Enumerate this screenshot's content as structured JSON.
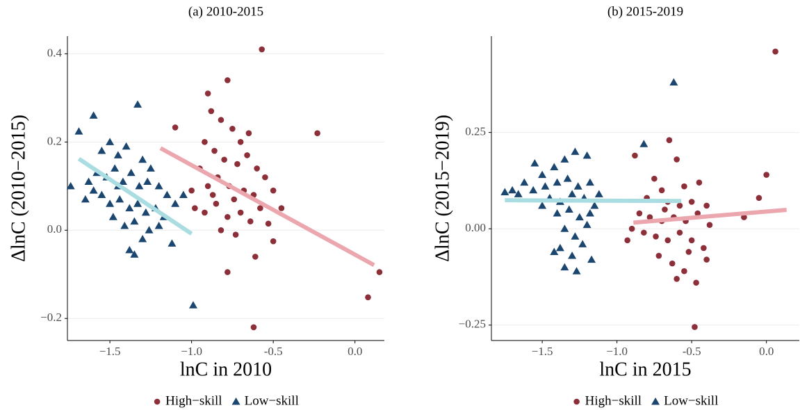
{
  "chart_data": [
    {
      "type": "scatter",
      "title": "(a) 2010-2015",
      "xlabel": "lnC in 2010",
      "ylabel": "ΔlnC (2010−2015)",
      "xlim": [
        -1.76,
        0.18
      ],
      "ylim": [
        -0.25,
        0.44
      ],
      "xticks": [
        {
          "value": -1.5,
          "label": "−1.5"
        },
        {
          "value": -1.0,
          "label": "−1.0"
        },
        -0.5,
        {
          "value": 0,
          "label": "0.0"
        }
      ],
      "yticks": [
        {
          "value": -0.2,
          "label": "−0.2"
        },
        {
          "value": 0,
          "label": "0.0"
        },
        0.2,
        0.4
      ],
      "grid": true,
      "legend": "bottom",
      "series": [
        {
          "name": "High−skill",
          "color": "#8c2f39",
          "marker": "circle",
          "x": [
            -0.57,
            -0.78,
            -0.9,
            -0.23,
            0.15,
            0.08,
            -0.62,
            -0.78,
            -0.5,
            -1.1,
            -0.88,
            -0.82,
            -0.75,
            -0.7,
            -0.65,
            -0.92,
            -0.86,
            -0.8,
            -0.72,
            -0.6,
            -0.55,
            -0.95,
            -0.9,
            -0.84,
            -0.77,
            -0.68,
            -0.62,
            -0.5,
            -0.45,
            -0.98,
            -0.92,
            -0.85,
            -0.78,
            -0.7,
            -0.64,
            -0.58,
            -0.82,
            -0.73,
            -0.61,
            -0.87,
            -0.66,
            -0.74,
            -0.53,
            -1.0
          ],
          "values": [
            0.41,
            0.34,
            0.31,
            0.22,
            -0.095,
            -0.152,
            -0.22,
            -0.095,
            -0.025,
            0.233,
            0.27,
            0.25,
            0.23,
            0.2,
            0.22,
            0.2,
            0.18,
            0.16,
            0.15,
            0.14,
            0.12,
            0.14,
            0.1,
            0.12,
            0.1,
            0.09,
            0.08,
            0.09,
            0.05,
            0.05,
            0.04,
            0.06,
            0.03,
            0.04,
            0.02,
            0.05,
            0.0,
            -0.01,
            -0.06,
            0.08,
            0.17,
            0.07,
            0.015,
            0.09
          ]
        },
        {
          "name": "Low−skill",
          "color": "#1b4670",
          "marker": "triangle",
          "x": [
            -1.69,
            -1.65,
            -1.6,
            -1.33,
            -0.99,
            -1.35,
            -1.38,
            -1.55,
            -1.5,
            -1.45,
            -1.4,
            -1.3,
            -1.25,
            -1.58,
            -1.52,
            -1.47,
            -1.42,
            -1.37,
            -1.32,
            -1.27,
            -1.2,
            -1.15,
            -1.6,
            -1.55,
            -1.5,
            -1.44,
            -1.38,
            -1.33,
            -1.28,
            -1.22,
            -1.17,
            -1.1,
            -1.05,
            -1.48,
            -1.41,
            -1.35,
            -1.26,
            -1.2,
            -1.3,
            -1.63,
            -1.74,
            -1.12,
            -1.45
          ],
          "values": [
            0.224,
            0.07,
            0.26,
            0.285,
            -0.17,
            -0.055,
            -0.045,
            0.18,
            0.2,
            0.17,
            0.19,
            0.16,
            0.14,
            0.13,
            0.12,
            0.14,
            0.11,
            0.13,
            0.1,
            0.11,
            0.1,
            0.08,
            0.09,
            0.08,
            0.06,
            0.07,
            0.05,
            0.06,
            0.04,
            0.05,
            0.03,
            0.06,
            0.08,
            0.03,
            0.01,
            0.02,
            0.0,
            0.01,
            -0.02,
            0.11,
            0.1,
            -0.03,
            0.1
          ]
        }
      ],
      "fits": [
        {
          "color": "#a9dde2",
          "x": [
            -1.69,
            -1.0
          ],
          "values": [
            0.162,
            -0.008
          ]
        },
        {
          "color": "#eba6ae",
          "x": [
            -1.19,
            0.117
          ],
          "values": [
            0.186,
            -0.079
          ]
        }
      ]
    },
    {
      "type": "scatter",
      "title": "(b) 2015-2019",
      "xlabel": "lnC in 2015",
      "ylabel": "ΔlnC (2015−2019)",
      "xlim": [
        -1.84,
        0.22
      ],
      "ylim": [
        -0.29,
        0.5
      ],
      "xticks": [
        {
          "value": -1.5,
          "label": "−1.5"
        },
        {
          "value": -1.0,
          "label": "−1.0"
        },
        -0.5,
        {
          "value": 0,
          "label": "0.0"
        }
      ],
      "yticks": [
        {
          "value": -0.25,
          "label": "−0.25"
        },
        {
          "value": 0,
          "label": "0.00"
        },
        0.25
      ],
      "grid": true,
      "legend": "bottom",
      "series": [
        {
          "name": "High−skill",
          "color": "#8c2f39",
          "marker": "circle",
          "x": [
            0.06,
            0.0,
            -0.05,
            -0.15,
            -0.48,
            -0.65,
            -0.88,
            -0.6,
            -0.75,
            -0.7,
            -0.55,
            -0.45,
            -0.8,
            -0.66,
            -0.58,
            -0.5,
            -0.4,
            -0.85,
            -0.78,
            -0.7,
            -0.62,
            -0.54,
            -0.46,
            -0.38,
            -0.9,
            -0.82,
            -0.74,
            -0.66,
            -0.58,
            -0.5,
            -0.42,
            -0.72,
            -0.63,
            -0.55,
            -0.47,
            -0.6,
            -0.93,
            -0.68,
            -0.52,
            -0.4
          ],
          "values": [
            0.46,
            0.14,
            0.08,
            0.03,
            -0.255,
            0.23,
            0.19,
            0.18,
            0.13,
            0.1,
            0.11,
            0.12,
            0.08,
            0.07,
            0.06,
            0.07,
            0.06,
            0.04,
            0.03,
            0.02,
            0.03,
            0.02,
            0.04,
            0.01,
            0.0,
            -0.01,
            -0.02,
            -0.03,
            -0.01,
            -0.03,
            -0.05,
            -0.07,
            -0.09,
            -0.11,
            -0.14,
            -0.13,
            -0.03,
            0.05,
            -0.06,
            -0.08
          ]
        },
        {
          "name": "Low−skill",
          "color": "#1b4670",
          "marker": "triangle",
          "x": [
            -1.75,
            -0.62,
            -0.82,
            -1.55,
            -1.5,
            -1.42,
            -1.35,
            -1.28,
            -1.2,
            -1.62,
            -1.56,
            -1.48,
            -1.4,
            -1.33,
            -1.26,
            -1.18,
            -1.12,
            -1.66,
            -1.45,
            -1.38,
            -1.3,
            -1.22,
            -1.15,
            -1.4,
            -1.32,
            -1.25,
            -1.18,
            -1.35,
            -1.28,
            -1.2,
            -1.38,
            -1.3,
            -1.23,
            -1.35,
            -1.27,
            -1.17,
            -1.42,
            -1.7,
            -1.5
          ],
          "values": [
            0.095,
            0.38,
            0.22,
            0.17,
            0.14,
            0.16,
            0.18,
            0.2,
            0.19,
            0.12,
            0.1,
            0.11,
            0.12,
            0.13,
            0.11,
            0.12,
            0.09,
            0.09,
            0.08,
            0.07,
            0.09,
            0.08,
            0.06,
            0.04,
            0.05,
            0.03,
            0.04,
            0.0,
            -0.02,
            0.01,
            -0.05,
            -0.07,
            -0.04,
            -0.1,
            -0.11,
            -0.08,
            -0.06,
            0.1,
            0.06
          ]
        }
      ],
      "fits": [
        {
          "color": "#a9dde2",
          "x": [
            -1.75,
            -0.57
          ],
          "values": [
            0.074,
            0.072
          ]
        },
        {
          "color": "#eba6ae",
          "x": [
            -0.89,
            0.135
          ],
          "values": [
            0.016,
            0.049
          ]
        }
      ]
    }
  ]
}
